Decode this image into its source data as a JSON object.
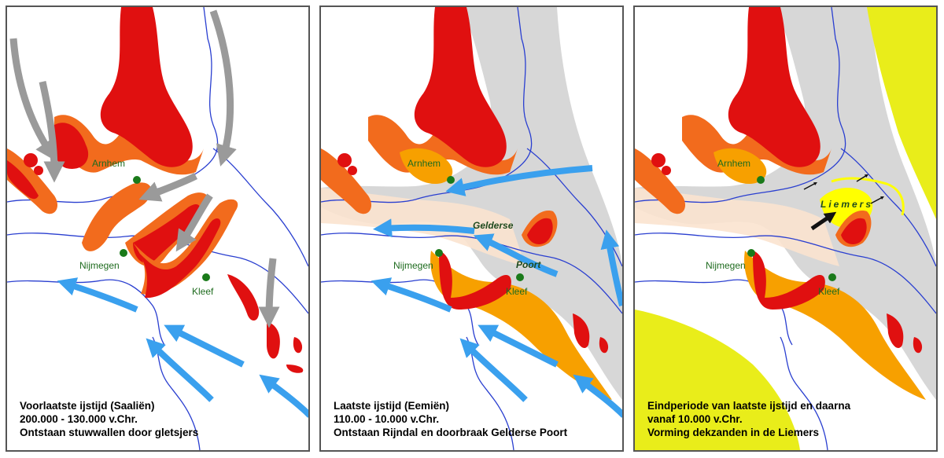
{
  "panels": [
    {
      "caption": [
        "Voorlaatste ijstijd (Saaliën)",
        "200.000 - 130.000 v.Chr.",
        "Ontstaan stuwwallen door gletsjers"
      ],
      "cities": [
        "Arnhem",
        "Nijmegen",
        "Kleef"
      ]
    },
    {
      "caption": [
        "Laatste ijstijd (Eemiën)",
        "110.00 - 10.000 v.Chr.",
        "Ontstaan Rijndal en doorbraak Gelderse Poort"
      ],
      "cities": [
        "Arnhem",
        "Nijmegen",
        "Kleef"
      ],
      "region_labels": [
        "Gelderse",
        "Poort"
      ]
    },
    {
      "caption": [
        "Eindperiode van laatste ijstijd en daarna",
        "vanaf 10.000 v.Chr.",
        "Vorming dekzanden in de Liemers"
      ],
      "cities": [
        "Arnhem",
        "Nijmegen",
        "Kleef"
      ],
      "region_labels": [
        "Liemers"
      ]
    }
  ],
  "colors": {
    "moraine_core": "#e01010",
    "moraine_edge": "#f26b1d",
    "fluvial_sand": "#f7a000",
    "valley": "#d7d7d7",
    "cover_sand": "#e9ed1a",
    "ice_flow": "#9a9a9a",
    "water_flow": "#3aa0ee",
    "river": "#2a3fd0",
    "city": "#1a7a1a"
  }
}
